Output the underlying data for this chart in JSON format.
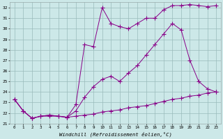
{
  "xlabel": "Windchill (Refroidissement éolien,°C)",
  "bg_color": "#cce8e8",
  "line_color": "#880088",
  "grid_color": "#99bbbb",
  "xlim": [
    -0.5,
    23.5
  ],
  "ylim": [
    21,
    32.5
  ],
  "yticks": [
    21,
    22,
    23,
    24,
    25,
    26,
    27,
    28,
    29,
    30,
    31,
    32
  ],
  "xticks": [
    0,
    1,
    2,
    3,
    4,
    5,
    6,
    7,
    8,
    9,
    10,
    11,
    12,
    13,
    14,
    15,
    16,
    17,
    18,
    19,
    20,
    21,
    22,
    23
  ],
  "series1_x": [
    0,
    1,
    2,
    3,
    4,
    5,
    6,
    7,
    8,
    9,
    10,
    11,
    12,
    13,
    14,
    15,
    16,
    17,
    18,
    19,
    20,
    21,
    22,
    23
  ],
  "series1_y": [
    23.3,
    22.2,
    21.5,
    21.7,
    21.8,
    21.7,
    21.6,
    22.8,
    28.5,
    28.3,
    32.0,
    30.5,
    30.2,
    30.0,
    30.5,
    31.0,
    31.0,
    31.8,
    32.2,
    32.2,
    32.3,
    32.2,
    32.1,
    32.2
  ],
  "series2_x": [
    0,
    1,
    2,
    3,
    4,
    5,
    6,
    7,
    8,
    9,
    10,
    11,
    12,
    13,
    14,
    15,
    16,
    17,
    18,
    19,
    20,
    21,
    22,
    23
  ],
  "series2_y": [
    23.3,
    22.2,
    21.5,
    21.7,
    21.8,
    21.7,
    21.6,
    22.2,
    23.5,
    24.5,
    25.2,
    25.5,
    25.0,
    25.8,
    26.5,
    27.5,
    28.5,
    29.5,
    30.5,
    29.9,
    27.0,
    25.0,
    24.3,
    24.0
  ],
  "series3_x": [
    0,
    1,
    2,
    3,
    4,
    5,
    6,
    7,
    8,
    9,
    10,
    11,
    12,
    13,
    14,
    15,
    16,
    17,
    18,
    19,
    20,
    21,
    22,
    23
  ],
  "series3_y": [
    23.3,
    22.2,
    21.5,
    21.7,
    21.7,
    21.7,
    21.6,
    21.7,
    21.8,
    21.9,
    22.1,
    22.2,
    22.3,
    22.5,
    22.6,
    22.7,
    22.9,
    23.1,
    23.3,
    23.4,
    23.6,
    23.7,
    23.9,
    24.0
  ]
}
